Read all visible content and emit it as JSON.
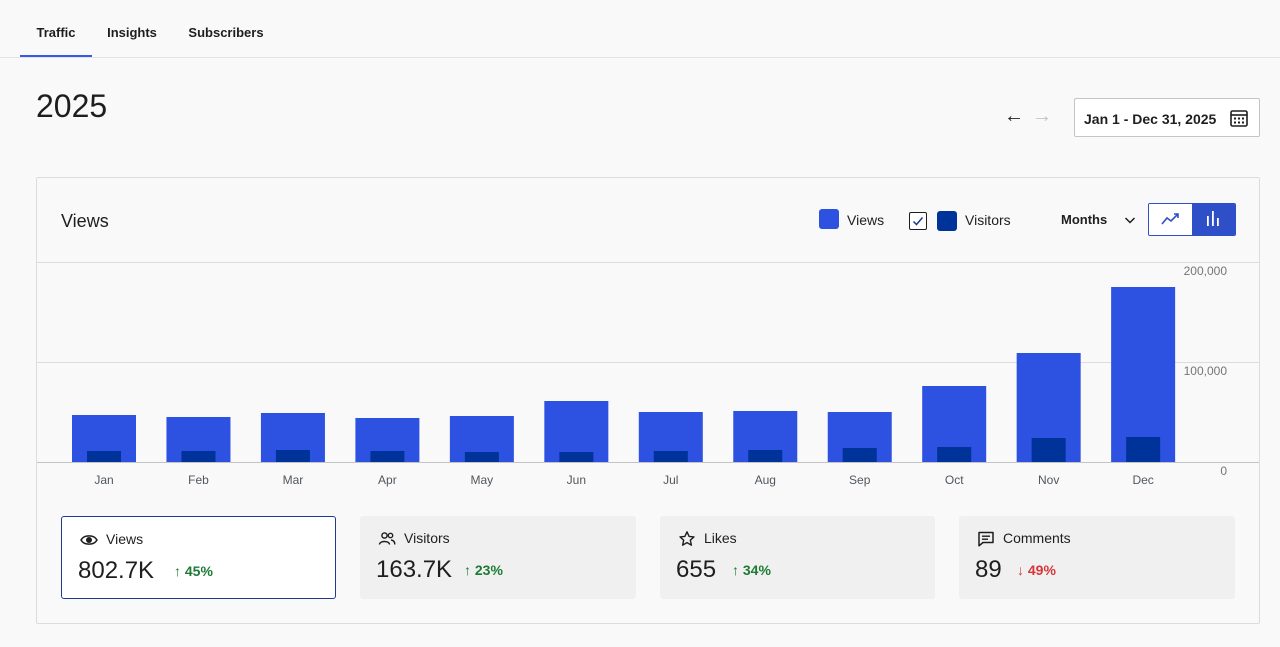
{
  "tabs": [
    {
      "label": "Traffic",
      "active": true
    },
    {
      "label": "Insights",
      "active": false
    },
    {
      "label": "Subscribers",
      "active": false
    }
  ],
  "header": {
    "year": "2025",
    "date_range": "Jan 1 - Dec 31, 2025",
    "prev_icon": "arrow-left-icon",
    "next_icon": "arrow-right-icon",
    "calendar_icon": "calendar-icon"
  },
  "card": {
    "title": "Views",
    "legend": {
      "views": "Views",
      "visitors": "Visitors",
      "visitors_checked": true
    },
    "period": "Months",
    "chart_modes": [
      "line-chart-icon",
      "bar-chart-icon"
    ],
    "active_mode": "bar"
  },
  "colors": {
    "views": "#2d51e0",
    "visitors": "#003399",
    "accent": "#3858e9",
    "up": "#1d7a35",
    "down": "#d63638"
  },
  "chart_data": {
    "type": "bar",
    "categories": [
      "Jan",
      "Feb",
      "Mar",
      "Apr",
      "May",
      "Jun",
      "Jul",
      "Aug",
      "Sep",
      "Oct",
      "Nov",
      "Dec"
    ],
    "series": [
      {
        "name": "Views",
        "values": [
          47000,
          45000,
          49000,
          44000,
          46000,
          61000,
          50000,
          51000,
          50000,
          76000,
          109000,
          175000
        ]
      },
      {
        "name": "Visitors",
        "values": [
          11000,
          11000,
          12000,
          11000,
          10000,
          10000,
          11000,
          12000,
          14000,
          15000,
          24000,
          25000
        ]
      }
    ],
    "y_ticks": [
      "200,000",
      "100,000",
      "0"
    ],
    "ylim": [
      0,
      200000
    ],
    "grid": true,
    "legend": "top-right"
  },
  "stats": [
    {
      "label": "Views",
      "value": "802.7K",
      "change": "45%",
      "direction": "up",
      "icon": "eye-icon",
      "selected": true
    },
    {
      "label": "Visitors",
      "value": "163.7K",
      "change": "23%",
      "direction": "up",
      "icon": "people-icon",
      "selected": false
    },
    {
      "label": "Likes",
      "value": "655",
      "change": "34%",
      "direction": "up",
      "icon": "star-icon",
      "selected": false
    },
    {
      "label": "Comments",
      "value": "89",
      "change": "49%",
      "direction": "down",
      "icon": "comment-icon",
      "selected": false
    }
  ],
  "arrows": {
    "up": "↑",
    "down": "↓"
  }
}
